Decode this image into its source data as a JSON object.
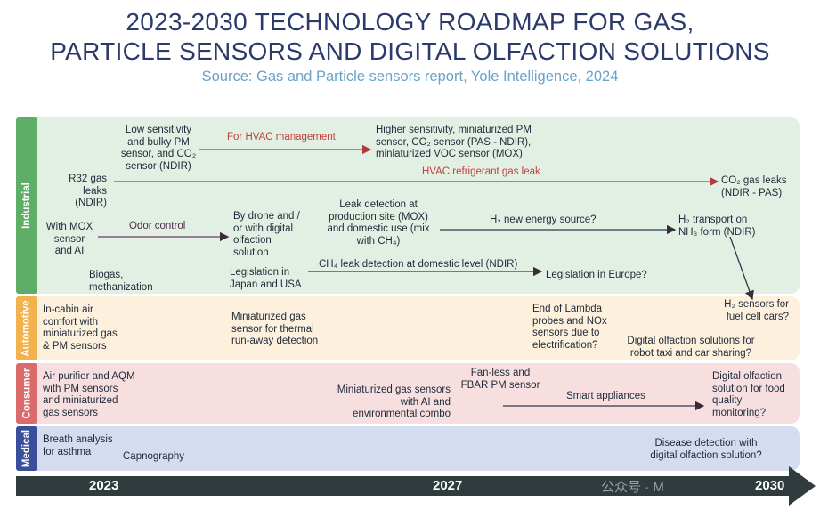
{
  "title": {
    "line1": "2023-2030 TECHNOLOGY ROADMAP FOR GAS,",
    "line2": "PARTICLE SENSORS AND DIGITAL OLFACTION SOLUTIONS"
  },
  "source": "Source: Gas and Particle sensors report, Yole Intelligence, 2024",
  "colors": {
    "industrial_band": "#e2efe3",
    "industrial_tab": "#5fae67",
    "automotive_band": "#fdf0dc",
    "automotive_tab": "#f2b24e",
    "consumer_band": "#f7dfe0",
    "consumer_tab": "#db6a6c",
    "medical_band": "#d4dcef",
    "medical_tab": "#3a4f9a",
    "timeline": "#2f3b3d"
  },
  "segments": {
    "industrial": "Industrial",
    "automotive": "Automotive",
    "consumer": "Consumer",
    "medical": "Medical"
  },
  "industrial": {
    "low_sensitivity": "Low sensitivity\nand bulky PM\nsensor, and CO₂\nsensor (NDIR)",
    "hvac_management": "For HVAC management",
    "higher_sensitivity": "Higher sensitivity,  miniaturized PM\nsensor, CO₂ sensor (PAS - NDIR),\nminiaturized VOC sensor (MOX)",
    "r32": "R32 gas\nleaks (NDIR)",
    "refrigerant_leak": "HVAC refrigerant gas leak",
    "co2_leaks": "CO₂ gas leaks\n(NDIR - PAS)",
    "mox_ai": "With MOX\nsensor\nand AI",
    "odor_control": "Odor control",
    "drone": "By drone and /\nor with digital\nolfaction\nsolution",
    "leak_detection": "Leak detection at\nproduction site (MOX)\nand domestic use (mix\nwith CH₄)",
    "h2_energy": "H₂ new energy source?",
    "h2_transport": "H₂ transport on\nNH₃ form (NDIR)",
    "biogas": "Biogas,\nmethanization",
    "legislation_jp_us": "Legislation in\nJapan and USA",
    "ch4_domestic": "CH₄ leak detection at domestic level (NDIR)",
    "legislation_eu": "Legislation in Europe?"
  },
  "automotive": {
    "cabin": "In-cabin air\ncomfort with\nminiaturized gas\n& PM sensors",
    "thermal": "Miniaturized gas\nsensor for thermal\nrun-away detection",
    "lambda": "End of Lambda\nprobes and  NOx\nsensors due to\nelectrification?",
    "h2_fuel": "H₂ sensors for\nfuel cell cars?",
    "robot_taxi": "Digital olfaction solutions for\nrobot taxi and car sharing?"
  },
  "consumer": {
    "air_purifier": "Air purifier and AQM\nwith PM sensors\nand miniaturized\ngas sensors",
    "combo": "Miniaturized gas sensors\nwith AI and\nenvironmental combo",
    "fanless": "Fan-less and\nFBAR PM sensor",
    "smart_appliances": "Smart appliances",
    "food_quality": "Digital olfaction\nsolution for food\nquality\nmonitoring?"
  },
  "medical": {
    "breath": "Breath analysis\nfor asthma",
    "capnography": "Capnography",
    "disease": "Disease detection with\ndigital olfaction solution?"
  },
  "timeline": {
    "year_start": "2023",
    "year_mid": "2027",
    "year_end": "2030"
  },
  "watermark": "公众号 · M"
}
